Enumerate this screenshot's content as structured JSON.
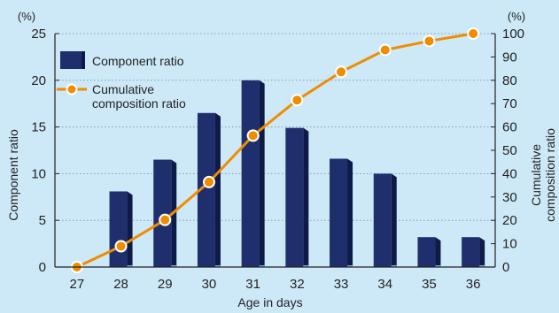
{
  "chart_data": {
    "type": "bar",
    "categories": [
      "27",
      "28",
      "29",
      "30",
      "31",
      "32",
      "33",
      "34",
      "35",
      "36"
    ],
    "series": [
      {
        "name": "Component ratio",
        "type": "bar",
        "axis": "left",
        "values": [
          0,
          8.1,
          11.5,
          16.5,
          20.0,
          14.9,
          11.6,
          10.0,
          3.2,
          3.2
        ]
      },
      {
        "name": "Cumulative composition ratio",
        "type": "line",
        "axis": "right",
        "values": [
          0,
          8.9,
          20.2,
          36.4,
          56.3,
          71.5,
          83.6,
          93.0,
          96.8,
          100
        ]
      }
    ],
    "xlabel": "Age in days",
    "ylabel": "Component ratio",
    "y2label": "Cumulative composition ratio",
    "y_unit": "(%)",
    "y2_unit": "(%)",
    "ylim": [
      0,
      25
    ],
    "y2lim": [
      0,
      100
    ],
    "yticks": [
      "0",
      "5",
      "10",
      "15",
      "20",
      "25"
    ],
    "y2ticks": [
      "0",
      "10",
      "20",
      "30",
      "40",
      "50",
      "60",
      "70",
      "80",
      "90",
      "100"
    ],
    "grid": true,
    "legend_position": "top-left",
    "legend": [
      "Component ratio",
      "Cumulative",
      "composition ratio"
    ],
    "colors": {
      "background": "#cde9f7",
      "bar": "#1f2f6e",
      "line": "#f08c00",
      "marker_fill": "#ffffff",
      "grid": "#8a9aa8"
    }
  }
}
